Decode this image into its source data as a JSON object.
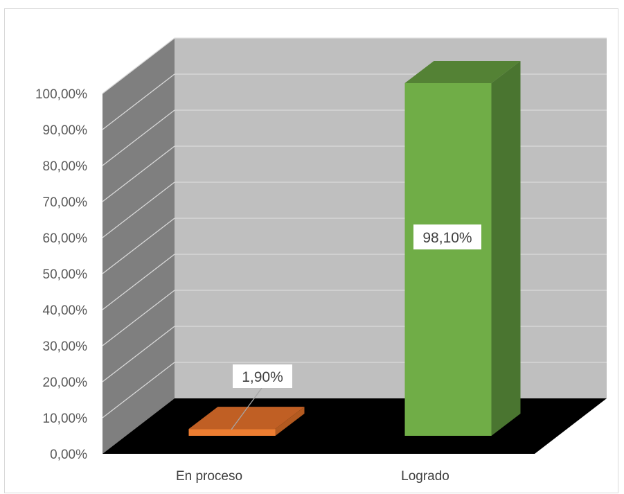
{
  "chart_data": {
    "type": "bar",
    "categories": [
      "En proceso",
      "Logrado"
    ],
    "values": [
      1.9,
      98.1
    ],
    "data_labels": [
      "1,90%",
      "98,10%"
    ],
    "colors": [
      "#ed7d31",
      "#70ad47"
    ],
    "side_colors": [
      "#b35a20",
      "#4a7530"
    ],
    "top_colors": [
      "#c05f24",
      "#548235"
    ],
    "ylim": [
      0,
      100
    ],
    "y_ticks": [
      0,
      10,
      20,
      30,
      40,
      50,
      60,
      70,
      80,
      90,
      100
    ],
    "y_tick_labels": [
      "0,00%",
      "10,00%",
      "20,00%",
      "30,00%",
      "40,00%",
      "50,00%",
      "60,00%",
      "70,00%",
      "80,00%",
      "90,00%",
      "100,00%"
    ],
    "title": "",
    "xlabel": "",
    "ylabel": "",
    "grid": true,
    "legend": "none",
    "style": "3d-clustered-column"
  }
}
